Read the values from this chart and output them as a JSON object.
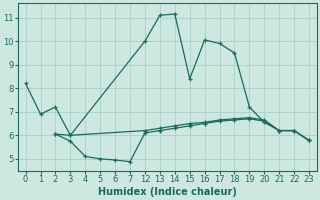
{
  "xlabel": "Humidex (Indice chaleur)",
  "bg_color": "#cce8e0",
  "grid_color": "#aacfc8",
  "line_color": "#1a6b5a",
  "yticks": [
    5,
    6,
    7,
    8,
    9,
    10,
    11
  ],
  "ylim": [
    4.5,
    11.6
  ],
  "xtick_labels": [
    "0",
    "1",
    "2",
    "3",
    "4",
    "5",
    "6",
    "7",
    "12",
    "13",
    "14",
    "15",
    "16",
    "17",
    "18",
    "19",
    "20",
    "21",
    "22",
    "23"
  ],
  "line1_xidx": [
    0,
    1,
    2,
    3,
    8,
    9,
    10,
    11,
    12,
    13,
    14,
    15,
    16,
    17,
    18,
    19
  ],
  "line1_y": [
    8.2,
    6.9,
    7.2,
    6.0,
    10.0,
    11.1,
    11.15,
    8.4,
    10.05,
    9.9,
    9.5,
    7.2,
    6.55,
    6.2,
    6.2,
    5.78
  ],
  "line2_xidx": [
    2,
    3,
    4,
    5,
    6,
    7,
    8,
    9,
    10,
    11,
    12,
    13,
    14,
    15,
    16,
    17,
    18,
    19
  ],
  "line2_y": [
    6.05,
    5.75,
    5.1,
    5.0,
    4.95,
    4.88,
    6.1,
    6.2,
    6.3,
    6.4,
    6.5,
    6.6,
    6.65,
    6.7,
    6.6,
    6.2,
    6.2,
    5.78
  ],
  "line3_xidx": [
    2,
    3,
    8,
    9,
    10,
    11,
    12,
    13,
    14,
    15,
    16,
    17,
    18,
    19
  ],
  "line3_y": [
    6.05,
    6.0,
    6.2,
    6.3,
    6.4,
    6.5,
    6.55,
    6.65,
    6.7,
    6.75,
    6.65,
    6.2,
    6.2,
    5.78
  ],
  "xlim": [
    -0.5,
    19.5
  ],
  "xlabel_fontsize": 7,
  "tick_fontsize": 6,
  "ylabel_fontsize": 7
}
